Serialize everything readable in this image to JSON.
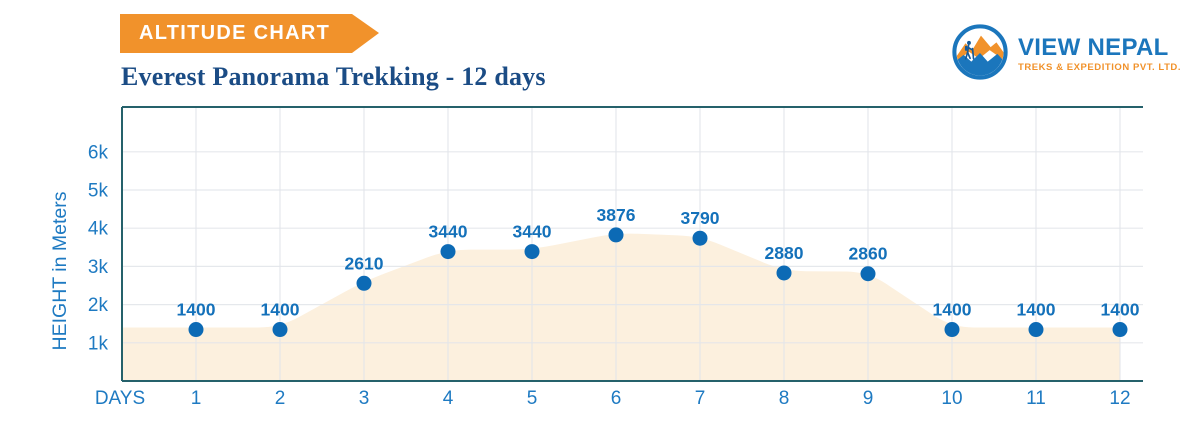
{
  "banner": {
    "label": "ALTITUDE CHART"
  },
  "title": "Everest Panorama Trekking - 12 days",
  "logo": {
    "name": "VIEW NEPAL",
    "tagline": "TREKS & EXPEDITION PVT. LTD.",
    "icon": "mountain-hiker-icon"
  },
  "colors": {
    "brand_orange": "#F1922B",
    "brand_blue": "#1B76BC",
    "title_navy": "#1B4C85",
    "axis_teal": "#25616B",
    "grid_gray": "#E3E6EB",
    "area_fill": "#FCF0DE",
    "point_blue": "#0C6AB5",
    "point_label_blue": "#1471BA",
    "tick_blue": "#1E7AC2",
    "banner_text": "#FFFFFF"
  },
  "chart_data": {
    "type": "area",
    "title": "Everest Panorama Trekking - 12 days",
    "xlabel": "DAYS",
    "ylabel": "HEIGHT in Meters",
    "x": [
      1,
      2,
      3,
      4,
      5,
      6,
      7,
      8,
      9,
      10,
      11,
      12
    ],
    "values": [
      1400,
      1400,
      2610,
      3440,
      3440,
      3876,
      3790,
      2880,
      2860,
      1400,
      1400,
      1400
    ],
    "point_labels": [
      "1400",
      "1400",
      "2610",
      "3440",
      "3440",
      "3876",
      "3790",
      "2880",
      "2860",
      "1400",
      "1400",
      "1400"
    ],
    "yticks": [
      {
        "label": "1k",
        "value": 1000
      },
      {
        "label": "2k",
        "value": 2000
      },
      {
        "label": "3k",
        "value": 3000
      },
      {
        "label": "4k",
        "value": 4000
      },
      {
        "label": "5k",
        "value": 5000
      },
      {
        "label": "6k",
        "value": 6000
      }
    ],
    "ylim": [
      0,
      7100
    ],
    "grid": true,
    "legend": false,
    "units": "meters"
  }
}
